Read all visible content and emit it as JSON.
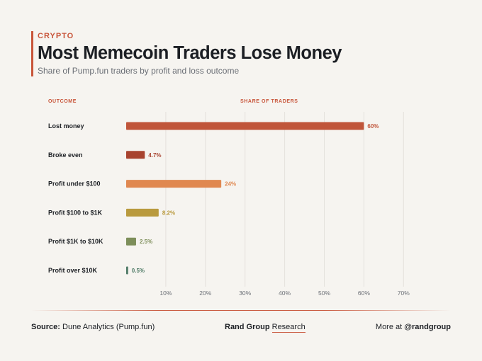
{
  "header": {
    "kicker": "CRYPTO",
    "title": "Most Memecoin Traders Lose Money",
    "subtitle": "Share of Pump.fun traders by profit and loss outcome"
  },
  "columns": {
    "outcome": "OUTCOME",
    "share": "SHARE OF TRADERS"
  },
  "chart_data": {
    "type": "bar",
    "orientation": "horizontal",
    "title": "Most Memecoin Traders Lose Money",
    "subtitle": "Share of Pump.fun traders by profit and loss outcome",
    "xlabel": "SHARE OF TRADERS",
    "ylabel": "OUTCOME",
    "categories": [
      "Lost money",
      "Broke even",
      "Profit under $100",
      "Profit $100 to $1K",
      "Profit $1K to $10K",
      "Profit over $10K"
    ],
    "values": [
      60,
      4.7,
      24,
      8.2,
      2.5,
      0.5
    ],
    "value_labels": [
      "60%",
      "4.7%",
      "24%",
      "8.2%",
      "2.5%",
      "0.5%"
    ],
    "colors": [
      "#c0553a",
      "#a8432f",
      "#e08850",
      "#b99a3e",
      "#7d8e5a",
      "#4f7a66"
    ],
    "xlim": [
      0,
      70
    ],
    "xticks": [
      10,
      20,
      30,
      40,
      50,
      60,
      70
    ],
    "xtick_labels": [
      "10%",
      "20%",
      "30%",
      "40%",
      "50%",
      "60%",
      "70%"
    ],
    "grid": true,
    "legend": "none"
  },
  "footer": {
    "source_label": "Source:",
    "source_text": "Dune Analytics (Pump.fun)",
    "brand_name": "Rand Group",
    "brand_research": "Research",
    "more_label": "More at",
    "handle": "@randgroup"
  }
}
